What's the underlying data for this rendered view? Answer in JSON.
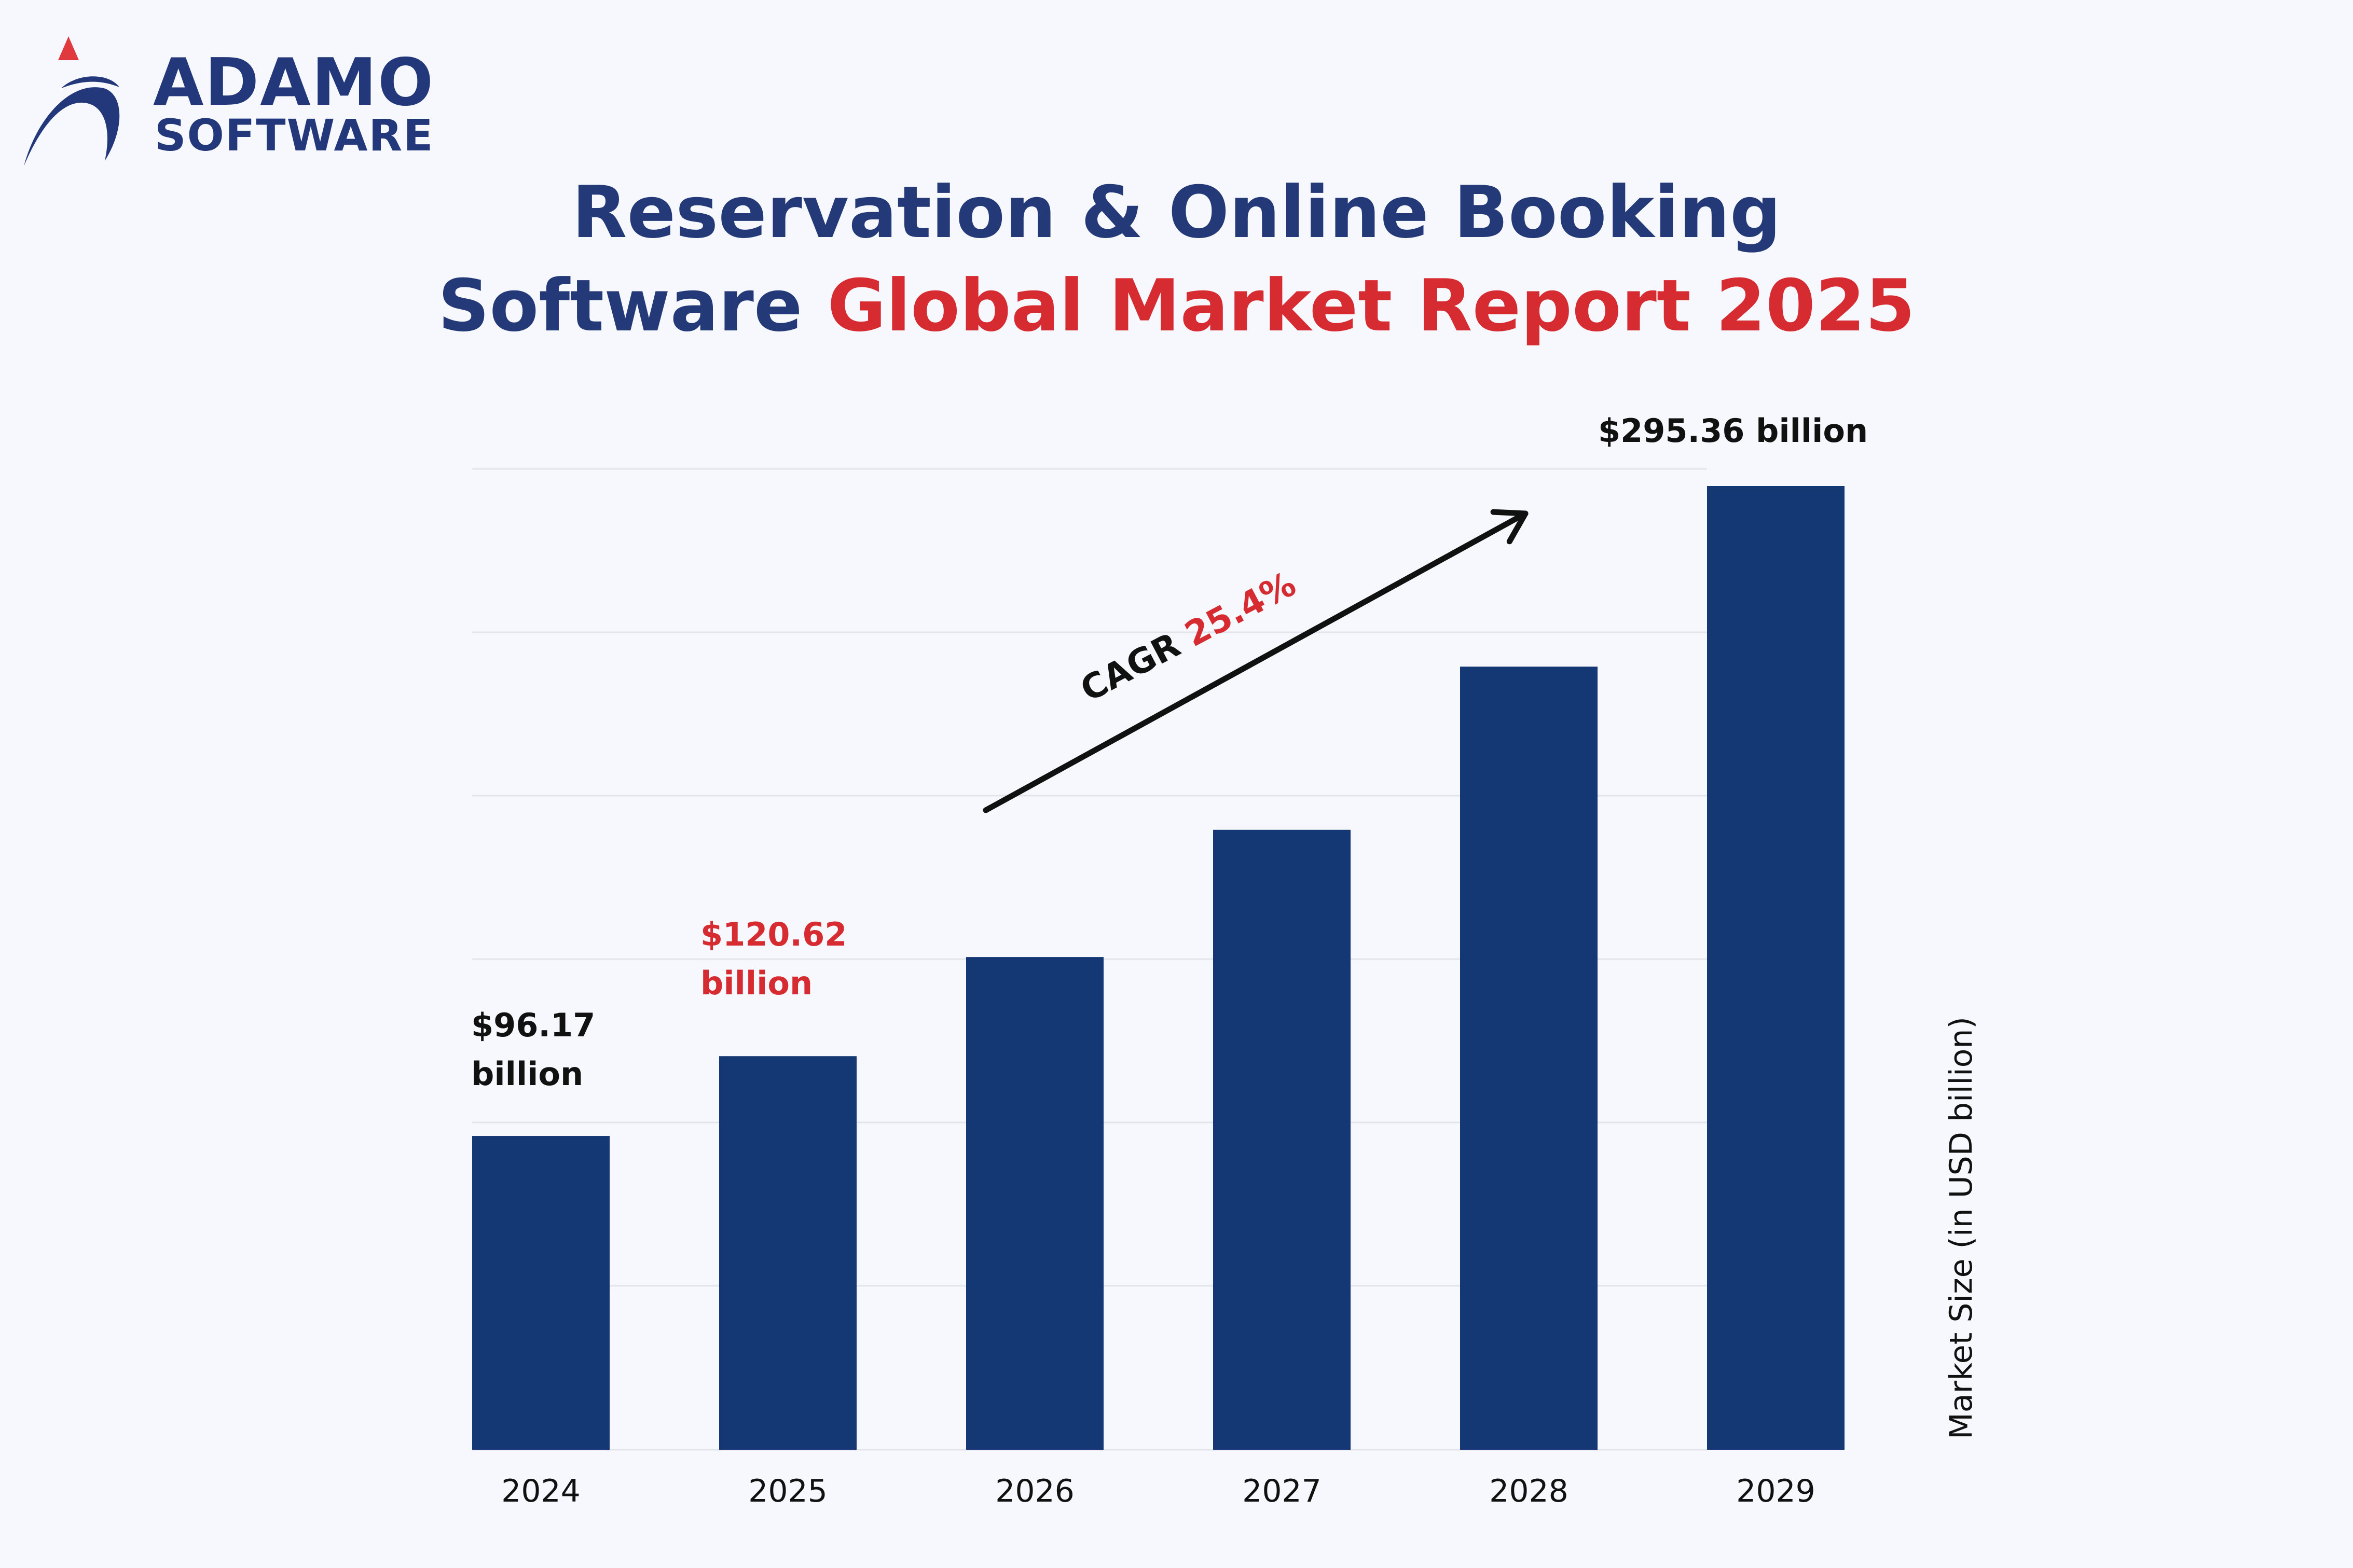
{
  "logo": {
    "line1": "ADAMO",
    "line2": "SOFTWARE",
    "navy": "#22387a",
    "accent": "#e03a3e",
    "icon": "adamo-swoosh-logo-icon"
  },
  "title": {
    "line1": "Reservation & Online Booking",
    "line2_navy": "Software",
    "line2_red": "Global Market Report 2025"
  },
  "colors": {
    "bar": "#133873",
    "title_navy": "#243a78",
    "highlight_red": "#d62b30",
    "grid": "#e3e5ec"
  },
  "chart_data": {
    "type": "bar",
    "categories": [
      "2024",
      "2025",
      "2026",
      "2027",
      "2028",
      "2029"
    ],
    "values": [
      96.17,
      120.62,
      151,
      190,
      240,
      295.36
    ],
    "ylabel": "Market Size (in USD billion)",
    "xlabel": "",
    "ylim": [
      0,
      300
    ],
    "grid": true,
    "data_labels": {
      "2024": [
        "$96.17",
        "billion"
      ],
      "2025": [
        "$120.62",
        "billion"
      ],
      "2029": "$295.36 billion"
    },
    "annotation": {
      "prefix": "CAGR",
      "value": "25.4%"
    }
  }
}
